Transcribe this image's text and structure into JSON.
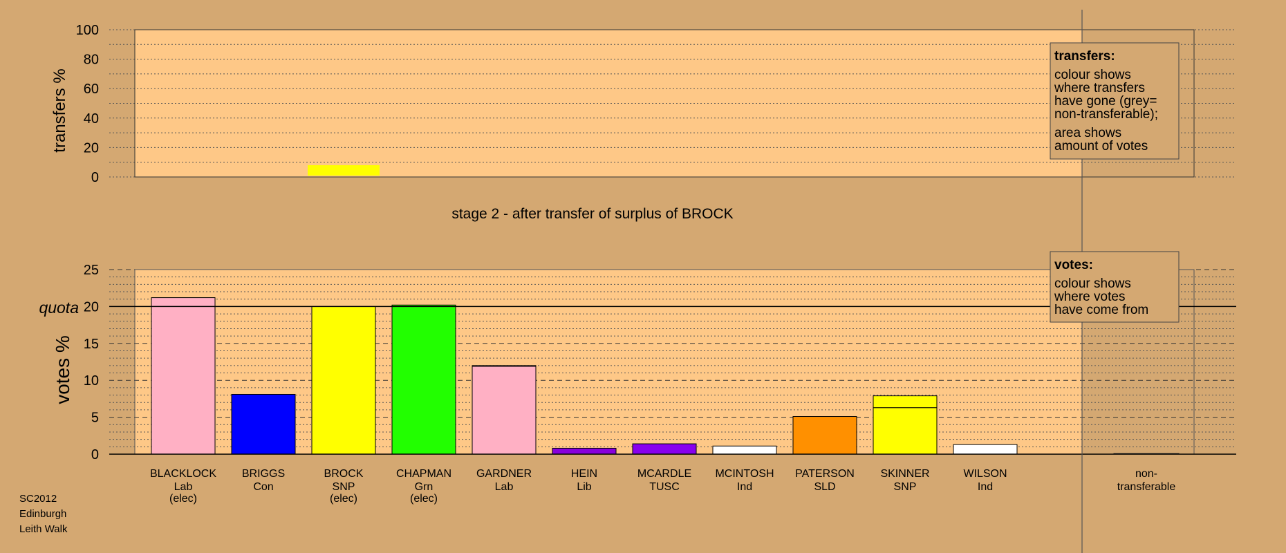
{
  "colors": {
    "background": "#d4a872",
    "plot_bg": "#fec887",
    "shaded_bg": "#d4a872",
    "grid": "#555555",
    "Lab": "#ffb0c4",
    "Con": "#0000ff",
    "SNP": "#ffff00",
    "Grn": "#22ff00",
    "Lib": "#8800dd",
    "TUSC": "#8800ee",
    "Ind": "#ffffff",
    "SLD": "#ff9000",
    "nontransferable": "#999999"
  },
  "footer": {
    "line1": "SC2012",
    "line2": "Edinburgh",
    "line3": "Leith Walk"
  },
  "chart_data": [
    {
      "type": "bar",
      "ylabel": "transfers %",
      "ylim": [
        0,
        100
      ],
      "yticks": [
        0,
        20,
        40,
        60,
        80,
        100
      ],
      "transfers": [
        {
          "candidate": "BROCK",
          "from": 0,
          "to": 8,
          "color": "#ffff00"
        }
      ],
      "legend": {
        "title": "transfers:",
        "lines_a": [
          "colour shows",
          "where transfers",
          "have gone (grey=",
          "non-transferable);"
        ],
        "lines_b": [
          "area shows",
          "amount of votes"
        ]
      }
    },
    {
      "type": "bar",
      "title": "stage 2 - after transfer of surplus of BROCK",
      "ylabel": "votes %",
      "ylim": [
        0,
        25
      ],
      "yticks": [
        0,
        5,
        10,
        15,
        20,
        25
      ],
      "quota": 20,
      "quota_label": "quota",
      "categories": [
        {
          "name": "BLACKLOCK",
          "party": "Lab",
          "status": "(elec)",
          "base": 21.2,
          "added": 0.0,
          "base_color": "#ffb0c4",
          "added_color": "#ffb0c4"
        },
        {
          "name": "BRIGGS",
          "party": "Con",
          "status": "",
          "base": 8.1,
          "added": 0.0,
          "base_color": "#0000ff",
          "added_color": "#0000ff"
        },
        {
          "name": "BROCK",
          "party": "SNP",
          "status": "(elec)",
          "base": 20.0,
          "added": 0.0,
          "base_color": "#ffff00",
          "added_color": "#ffff00"
        },
        {
          "name": "CHAPMAN",
          "party": "Grn",
          "status": "(elec)",
          "base": 20.2,
          "added": 0.0,
          "base_color": "#22ff00",
          "added_color": "#22ff00"
        },
        {
          "name": "GARDNER",
          "party": "Lab",
          "status": "",
          "base": 11.9,
          "added": 0.1,
          "base_color": "#ffb0c4",
          "added_color": "#ffb0c4"
        },
        {
          "name": "HEIN",
          "party": "Lib",
          "status": "",
          "base": 0.8,
          "added": 0.0,
          "base_color": "#8800dd",
          "added_color": "#8800dd"
        },
        {
          "name": "MCARDLE",
          "party": "TUSC",
          "status": "",
          "base": 1.4,
          "added": 0.0,
          "base_color": "#8800ee",
          "added_color": "#8800ee"
        },
        {
          "name": "MCINTOSH",
          "party": "Ind",
          "status": "",
          "base": 1.1,
          "added": 0.0,
          "base_color": "#ffffff",
          "added_color": "#ffffff"
        },
        {
          "name": "PATERSON",
          "party": "SLD",
          "status": "",
          "base": 5.1,
          "added": 0.0,
          "base_color": "#ff9000",
          "added_color": "#ff9000"
        },
        {
          "name": "SKINNER",
          "party": "SNP",
          "status": "",
          "base": 6.3,
          "added": 1.6,
          "base_color": "#ffff00",
          "added_color": "#ffff00"
        },
        {
          "name": "WILSON",
          "party": "Ind",
          "status": "",
          "base": 1.3,
          "added": 0.0,
          "base_color": "#ffffff",
          "added_color": "#ffffff"
        }
      ],
      "nontransferable": {
        "label1": "non-",
        "label2": "transferable",
        "value": 0.1
      },
      "legend": {
        "title": "votes:",
        "lines": [
          "colour shows",
          "where votes",
          "have come from"
        ]
      }
    }
  ]
}
